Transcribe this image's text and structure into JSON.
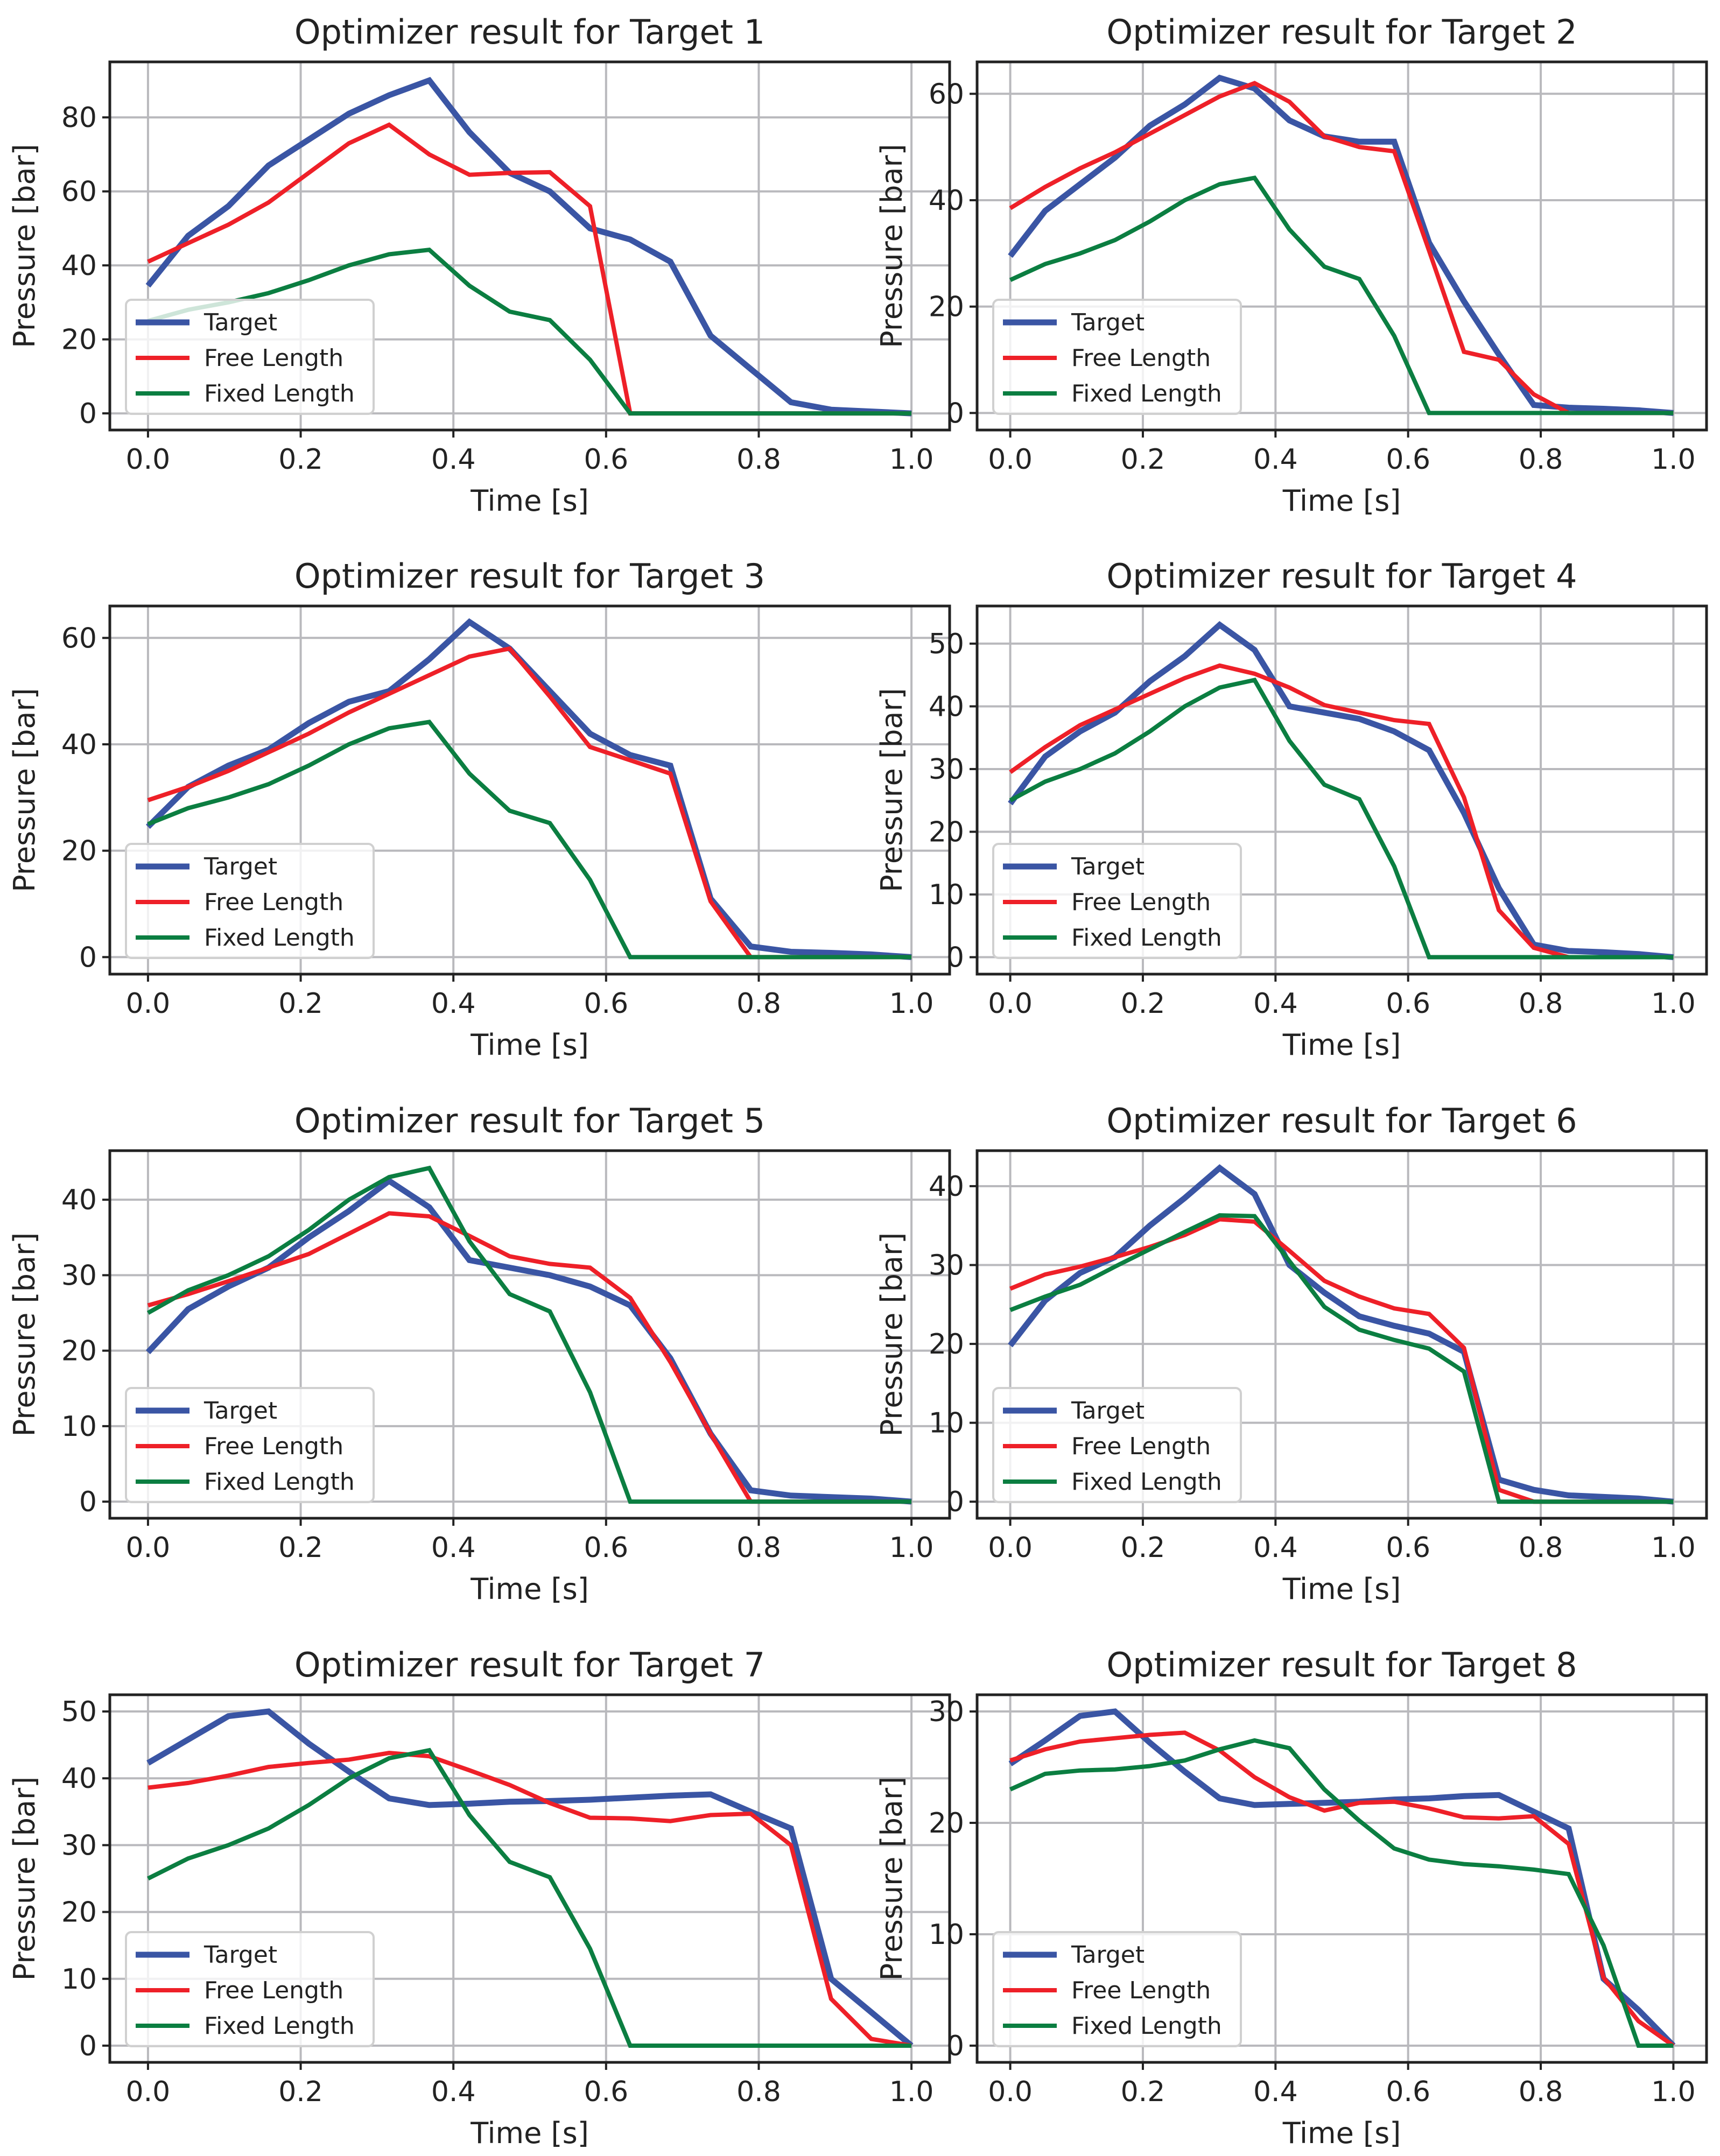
{
  "chart_data": [
    {
      "type": "line",
      "title": "Optimizer result for Target 1",
      "xlabel": "Time [s]",
      "ylabel": "Pressure [bar]",
      "xlim": [
        -0.05,
        1.05
      ],
      "ylim": [
        -4.5,
        95
      ],
      "xticks": [
        0.0,
        0.2,
        0.4,
        0.6,
        0.8,
        1.0
      ],
      "xtick_labels": [
        "0.0",
        "0.2",
        "0.4",
        "0.6",
        "0.8",
        "1.0"
      ],
      "yticks": [
        0,
        20,
        40,
        60,
        80
      ],
      "ytick_labels": [
        "0",
        "20",
        "40",
        "60",
        "80"
      ],
      "grid": true,
      "legend": "lower-left",
      "series": [
        {
          "name": "Target",
          "values": [
            34.5,
            48,
            56,
            67,
            74,
            81,
            86,
            90,
            76,
            65,
            60,
            50,
            47,
            41,
            21,
            12,
            3,
            1,
            0.5,
            0
          ]
        },
        {
          "name": "Free Length",
          "values": [
            41,
            46,
            51,
            57,
            65,
            73,
            78,
            70,
            64.5,
            65,
            65.2,
            56,
            0,
            0,
            0,
            0,
            0,
            0,
            0,
            0
          ]
        },
        {
          "name": "Fixed Length",
          "values": [
            25,
            28,
            30,
            32.5,
            36,
            40,
            43,
            44.2,
            34.5,
            27.5,
            25.2,
            14.5,
            0,
            0,
            0,
            0,
            0,
            0,
            0,
            0
          ]
        }
      ]
    },
    {
      "type": "line",
      "title": "Optimizer result for Target 2",
      "xlabel": "Time [s]",
      "ylabel": "Pressure [bar]",
      "xlim": [
        -0.05,
        1.05
      ],
      "ylim": [
        -3.2,
        66
      ],
      "xticks": [
        0.0,
        0.2,
        0.4,
        0.6,
        0.8,
        1.0
      ],
      "xtick_labels": [
        "0.0",
        "0.2",
        "0.4",
        "0.6",
        "0.8",
        "1.0"
      ],
      "yticks": [
        0,
        20,
        40,
        60
      ],
      "ytick_labels": [
        "0",
        "20",
        "40",
        "60"
      ],
      "grid": true,
      "legend": "lower-left",
      "series": [
        {
          "name": "Target",
          "values": [
            29.5,
            38,
            43,
            48,
            54,
            58,
            63,
            61,
            55,
            52,
            51,
            51,
            32,
            21,
            11,
            1.5,
            1,
            0.8,
            0.5,
            0
          ]
        },
        {
          "name": "Free Length",
          "values": [
            38.5,
            42.5,
            46,
            49,
            52.5,
            56,
            59.5,
            62,
            58.5,
            52,
            50,
            49.2,
            30.5,
            11.5,
            10,
            3.5,
            0,
            0,
            0,
            0
          ]
        },
        {
          "name": "Fixed Length",
          "values": [
            25,
            28,
            30,
            32.5,
            36,
            40,
            43,
            44.2,
            34.5,
            27.5,
            25.2,
            14.5,
            0,
            0,
            0,
            0,
            0,
            0,
            0,
            0
          ]
        }
      ]
    },
    {
      "type": "line",
      "title": "Optimizer result for Target 3",
      "xlabel": "Time [s]",
      "ylabel": "Pressure [bar]",
      "xlim": [
        -0.05,
        1.05
      ],
      "ylim": [
        -3.2,
        66
      ],
      "xticks": [
        0.0,
        0.2,
        0.4,
        0.6,
        0.8,
        1.0
      ],
      "xtick_labels": [
        "0.0",
        "0.2",
        "0.4",
        "0.6",
        "0.8",
        "1.0"
      ],
      "yticks": [
        0,
        20,
        40,
        60
      ],
      "ytick_labels": [
        "0",
        "20",
        "40",
        "60"
      ],
      "grid": true,
      "legend": "lower-left",
      "series": [
        {
          "name": "Target",
          "values": [
            24.5,
            32,
            36,
            39,
            44,
            48,
            50,
            56,
            63,
            58,
            50,
            42,
            38,
            36,
            11,
            2,
            1,
            0.8,
            0.5,
            0
          ]
        },
        {
          "name": "Free Length",
          "values": [
            29.5,
            32,
            35,
            38.5,
            42,
            46,
            49.5,
            53,
            56.5,
            58,
            49,
            39.5,
            37,
            34.5,
            10.5,
            0,
            0,
            0,
            0,
            0
          ]
        },
        {
          "name": "Fixed Length",
          "values": [
            25,
            28,
            30,
            32.5,
            36,
            40,
            43,
            44.2,
            34.5,
            27.5,
            25.2,
            14.5,
            0,
            0,
            0,
            0,
            0,
            0,
            0,
            0
          ]
        }
      ]
    },
    {
      "type": "line",
      "title": "Optimizer result for Target 4",
      "xlabel": "Time [s]",
      "ylabel": "Pressure [bar]",
      "xlim": [
        -0.05,
        1.05
      ],
      "ylim": [
        -2.7,
        56
      ],
      "xticks": [
        0.0,
        0.2,
        0.4,
        0.6,
        0.8,
        1.0
      ],
      "xtick_labels": [
        "0.0",
        "0.2",
        "0.4",
        "0.6",
        "0.8",
        "1.0"
      ],
      "yticks": [
        0,
        10,
        20,
        30,
        40,
        50
      ],
      "ytick_labels": [
        "0",
        "10",
        "20",
        "30",
        "40",
        "50"
      ],
      "grid": true,
      "legend": "lower-left",
      "series": [
        {
          "name": "Target",
          "values": [
            24.5,
            32,
            36,
            39,
            44,
            48,
            53,
            49,
            40,
            39,
            38,
            36,
            33,
            23,
            11,
            2,
            1,
            0.8,
            0.5,
            0
          ]
        },
        {
          "name": "Free Length",
          "values": [
            29.5,
            33.5,
            37,
            39.5,
            42,
            44.5,
            46.5,
            45.2,
            43,
            40.2,
            39,
            37.8,
            37.2,
            25.5,
            7.5,
            1.5,
            0,
            0,
            0,
            0
          ]
        },
        {
          "name": "Fixed Length",
          "values": [
            25,
            28,
            30,
            32.5,
            36,
            40,
            43,
            44.2,
            34.5,
            27.5,
            25.2,
            14.5,
            0,
            0,
            0,
            0,
            0,
            0,
            0,
            0
          ]
        }
      ]
    },
    {
      "type": "line",
      "title": "Optimizer result for Target 5",
      "xlabel": "Time [s]",
      "ylabel": "Pressure [bar]",
      "xlim": [
        -0.05,
        1.05
      ],
      "ylim": [
        -2.2,
        46.5
      ],
      "xticks": [
        0.0,
        0.2,
        0.4,
        0.6,
        0.8,
        1.0
      ],
      "xtick_labels": [
        "0.0",
        "0.2",
        "0.4",
        "0.6",
        "0.8",
        "1.0"
      ],
      "yticks": [
        0,
        10,
        20,
        30,
        40
      ],
      "ytick_labels": [
        "0",
        "10",
        "20",
        "30",
        "40"
      ],
      "grid": true,
      "legend": "lower-left",
      "series": [
        {
          "name": "Target",
          "values": [
            19.8,
            25.5,
            28.5,
            31,
            35,
            38.5,
            42.5,
            39,
            32,
            31,
            30,
            28.5,
            26,
            19,
            9,
            1.5,
            0.8,
            0.6,
            0.4,
            0
          ]
        },
        {
          "name": "Free Length",
          "values": [
            26,
            27.5,
            29.2,
            31,
            32.8,
            35.5,
            38.2,
            37.8,
            35.2,
            32.5,
            31.5,
            31,
            27,
            18.5,
            9,
            0,
            0,
            0,
            0,
            0
          ]
        },
        {
          "name": "Fixed Length",
          "values": [
            25,
            28,
            30,
            32.5,
            36,
            40,
            43,
            44.2,
            34.5,
            27.5,
            25.2,
            14.5,
            0,
            0,
            0,
            0,
            0,
            0,
            0,
            0
          ]
        }
      ]
    },
    {
      "type": "line",
      "title": "Optimizer result for Target 6",
      "xlabel": "Time [s]",
      "ylabel": "Pressure [bar]",
      "xlim": [
        -0.05,
        1.05
      ],
      "ylim": [
        -2.1,
        44.5
      ],
      "xticks": [
        0.0,
        0.2,
        0.4,
        0.6,
        0.8,
        1.0
      ],
      "xtick_labels": [
        "0.0",
        "0.2",
        "0.4",
        "0.6",
        "0.8",
        "1.0"
      ],
      "yticks": [
        0,
        10,
        20,
        30,
        40
      ],
      "ytick_labels": [
        "0",
        "10",
        "20",
        "30",
        "40"
      ],
      "grid": true,
      "legend": "lower-left",
      "series": [
        {
          "name": "Target",
          "values": [
            19.8,
            25.5,
            29,
            31,
            35,
            38.5,
            42.3,
            39,
            30,
            26.5,
            23.5,
            22.3,
            21.3,
            19,
            2.8,
            1.5,
            0.8,
            0.6,
            0.4,
            0
          ]
        },
        {
          "name": "Free Length",
          "values": [
            27,
            28.8,
            29.8,
            31,
            32.3,
            33.8,
            35.8,
            35.5,
            31.8,
            28,
            26,
            24.5,
            23.8,
            19.5,
            1.5,
            0,
            0,
            0,
            0,
            0
          ]
        },
        {
          "name": "Fixed Length",
          "values": [
            24.3,
            26,
            27.5,
            29.8,
            32,
            34.2,
            36.3,
            36.2,
            30.5,
            24.7,
            21.8,
            20.5,
            19.4,
            16.5,
            0,
            0,
            0,
            0,
            0,
            0
          ]
        }
      ]
    },
    {
      "type": "line",
      "title": "Optimizer result for Target 7",
      "xlabel": "Time [s]",
      "ylabel": "Pressure [bar]",
      "xlim": [
        -0.05,
        1.05
      ],
      "ylim": [
        -2.5,
        52.5
      ],
      "xticks": [
        0.0,
        0.2,
        0.4,
        0.6,
        0.8,
        1.0
      ],
      "xtick_labels": [
        "0.0",
        "0.2",
        "0.4",
        "0.6",
        "0.8",
        "1.0"
      ],
      "yticks": [
        0,
        10,
        20,
        30,
        40,
        50
      ],
      "ytick_labels": [
        "0",
        "10",
        "20",
        "30",
        "40",
        "50"
      ],
      "grid": true,
      "legend": "lower-left",
      "series": [
        {
          "name": "Target",
          "values": [
            42.3,
            45.8,
            49.3,
            50,
            45.2,
            41,
            37,
            36,
            36.2,
            36.5,
            36.6,
            36.8,
            37.1,
            37.4,
            37.6,
            35,
            32.5,
            10,
            5,
            0
          ]
        },
        {
          "name": "Free Length",
          "values": [
            38.6,
            39.3,
            40.4,
            41.7,
            42.3,
            42.8,
            43.8,
            43.3,
            41.2,
            39,
            36.3,
            34.1,
            34,
            33.6,
            34.5,
            34.7,
            30,
            7,
            1,
            0
          ]
        },
        {
          "name": "Fixed Length",
          "values": [
            25,
            28,
            30,
            32.5,
            36,
            40,
            43,
            44.2,
            34.5,
            27.5,
            25.2,
            14.5,
            0,
            0,
            0,
            0,
            0,
            0,
            0,
            0
          ]
        }
      ]
    },
    {
      "type": "line",
      "title": "Optimizer result for Target 8",
      "xlabel": "Time [s]",
      "ylabel": "Pressure [bar]",
      "xlim": [
        -0.05,
        1.05
      ],
      "ylim": [
        -1.5,
        31.5
      ],
      "xticks": [
        0.0,
        0.2,
        0.4,
        0.6,
        0.8,
        1.0
      ],
      "xtick_labels": [
        "0.0",
        "0.2",
        "0.4",
        "0.6",
        "0.8",
        "1.0"
      ],
      "yticks": [
        0,
        10,
        20,
        30
      ],
      "ytick_labels": [
        "0",
        "10",
        "20",
        "30"
      ],
      "grid": true,
      "legend": "lower-left",
      "series": [
        {
          "name": "Target",
          "values": [
            25.3,
            27.4,
            29.6,
            30,
            27.2,
            24.6,
            22.2,
            21.6,
            21.7,
            21.8,
            21.9,
            22.1,
            22.2,
            22.4,
            22.5,
            21,
            19.5,
            6,
            3.2,
            0
          ]
        },
        {
          "name": "Free Length",
          "values": [
            25.6,
            26.6,
            27.3,
            27.6,
            27.9,
            28.1,
            26.5,
            24.1,
            22.3,
            21.1,
            21.8,
            21.9,
            21.3,
            20.5,
            20.4,
            20.6,
            18.1,
            6.1,
            2.2,
            0
          ]
        },
        {
          "name": "Fixed Length",
          "values": [
            23,
            24.4,
            24.7,
            24.8,
            25.1,
            25.6,
            26.6,
            27.4,
            26.7,
            23,
            20.2,
            17.7,
            16.7,
            16.3,
            16.1,
            15.8,
            15.4,
            9,
            0,
            0
          ]
        }
      ]
    }
  ],
  "x_values": [
    0.0,
    0.05263,
    0.10526,
    0.15789,
    0.21053,
    0.26316,
    0.31579,
    0.36842,
    0.42105,
    0.47368,
    0.52632,
    0.57895,
    0.63158,
    0.68421,
    0.73684,
    0.78947,
    0.84211,
    0.89474,
    0.94737,
    1.0
  ],
  "legend_labels": [
    "Target",
    "Free Length",
    "Fixed Length"
  ],
  "colors": {
    "Target": "#3a55a4",
    "Free Length": "#ee2028",
    "Fixed Length": "#0b7e41",
    "grid": "#b9b9bd",
    "axes": "#222222"
  }
}
